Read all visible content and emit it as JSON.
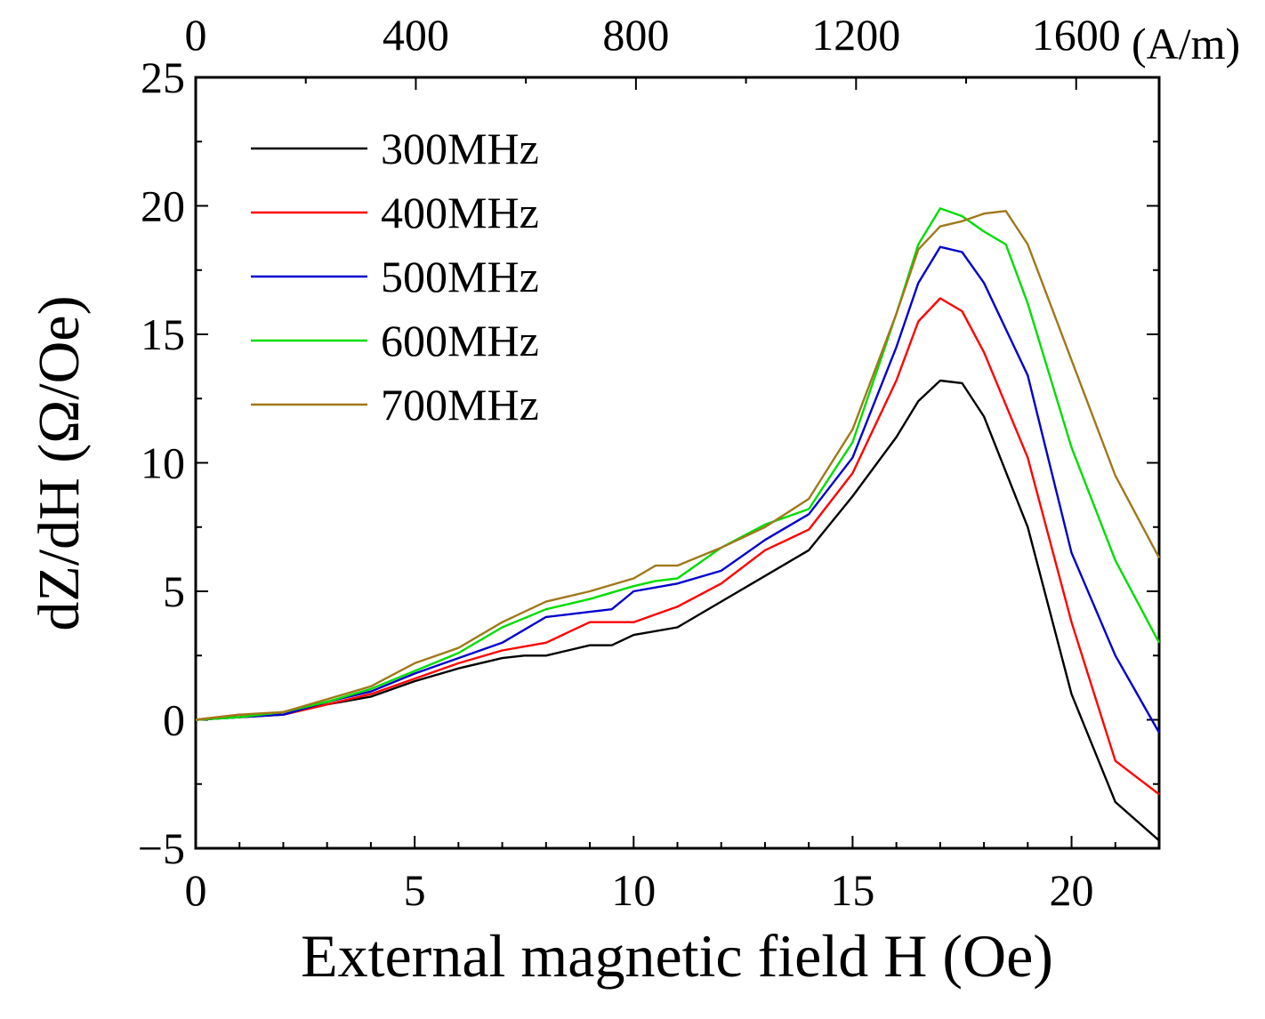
{
  "chart_data": {
    "type": "line",
    "title": "",
    "xlabel": "External magnetic field H (Oe)",
    "ylabel": "dZ/dH (Ω/Oe)",
    "xlim": [
      0,
      22
    ],
    "ylim": [
      -5,
      25
    ],
    "xticks": [
      0,
      5,
      10,
      15,
      20
    ],
    "yticks": [
      -5,
      0,
      5,
      10,
      15,
      20,
      25
    ],
    "xtick_labels": [
      "0",
      "5",
      "10",
      "15",
      "20"
    ],
    "ytick_labels": [
      "−5",
      "0",
      "5",
      "10",
      "15",
      "20",
      "25"
    ],
    "top_axis": {
      "unit_label": "(A/m)",
      "ticks": [
        0,
        400,
        800,
        1200,
        1600
      ],
      "tick_labels": [
        "0",
        "400",
        "800",
        "1200",
        "1600"
      ],
      "oe_per_unit": 0.012566
    },
    "legend_position": "top-left",
    "grid": false,
    "series": [
      {
        "name": "300MHz",
        "color": "#000000",
        "x": [
          0,
          1,
          2,
          3,
          4,
          5,
          6,
          7,
          7.5,
          8,
          9,
          9.5,
          10,
          11,
          12,
          13,
          14,
          15,
          16,
          16.5,
          17,
          17.5,
          18,
          19,
          20,
          21,
          22
        ],
        "y": [
          0,
          0.1,
          0.2,
          0.6,
          0.9,
          1.5,
          2.0,
          2.4,
          2.5,
          2.5,
          2.9,
          2.9,
          3.3,
          3.6,
          4.6,
          5.6,
          6.6,
          8.7,
          11.0,
          12.4,
          13.2,
          13.1,
          11.8,
          7.5,
          1.0,
          -3.2,
          -4.7
        ]
      },
      {
        "name": "400MHz",
        "color": "#ff0000",
        "x": [
          0,
          1,
          2,
          3,
          4,
          5,
          6,
          7,
          8,
          9,
          9.5,
          10,
          11,
          12,
          13,
          14,
          15,
          16,
          16.5,
          17,
          17.5,
          18,
          19,
          20,
          21,
          22
        ],
        "y": [
          0,
          0.2,
          0.2,
          0.6,
          1.0,
          1.6,
          2.2,
          2.7,
          3.0,
          3.8,
          3.8,
          3.8,
          4.4,
          5.3,
          6.6,
          7.4,
          9.6,
          13.2,
          15.5,
          16.4,
          15.9,
          14.3,
          10.2,
          3.8,
          -1.6,
          -2.9
        ]
      },
      {
        "name": "500MHz",
        "color": "#0000cc",
        "x": [
          0,
          1,
          2,
          3,
          4,
          5,
          6,
          7,
          8,
          9,
          9.5,
          10,
          11,
          12,
          13,
          14,
          15,
          16,
          16.5,
          17,
          17.5,
          18,
          19,
          20,
          21,
          22
        ],
        "y": [
          0,
          0.1,
          0.2,
          0.7,
          1.1,
          1.8,
          2.4,
          3.0,
          4.0,
          4.2,
          4.3,
          5.0,
          5.3,
          5.8,
          7.0,
          8.0,
          10.2,
          14.5,
          17.0,
          18.4,
          18.2,
          17.0,
          13.4,
          6.5,
          2.5,
          -0.5
        ]
      },
      {
        "name": "600MHz",
        "color": "#00dd00",
        "x": [
          0,
          1,
          2,
          3,
          4,
          5,
          6,
          7,
          8,
          9,
          10,
          10.5,
          11,
          12,
          13,
          14,
          15,
          16,
          16.5,
          17,
          17.5,
          18,
          18.5,
          19,
          20,
          21,
          22
        ],
        "y": [
          0,
          0.1,
          0.3,
          0.7,
          1.2,
          1.9,
          2.6,
          3.6,
          4.3,
          4.7,
          5.2,
          5.4,
          5.5,
          6.7,
          7.6,
          8.2,
          10.8,
          15.8,
          18.5,
          19.9,
          19.6,
          19.0,
          18.5,
          16.2,
          10.6,
          6.2,
          3.0
        ]
      },
      {
        "name": "700MHz",
        "color": "#a0781a",
        "x": [
          0,
          1,
          2,
          3,
          4,
          5,
          6,
          7,
          8,
          9,
          10,
          10.5,
          11,
          12,
          13,
          14,
          15,
          16,
          16.5,
          17,
          17.5,
          18,
          18.5,
          19,
          20,
          21,
          22
        ],
        "y": [
          0,
          0.2,
          0.3,
          0.8,
          1.3,
          2.2,
          2.8,
          3.8,
          4.6,
          5.0,
          5.5,
          6.0,
          6.0,
          6.7,
          7.5,
          8.6,
          11.3,
          15.8,
          18.3,
          19.2,
          19.4,
          19.7,
          19.8,
          18.5,
          14.0,
          9.5,
          6.3
        ]
      }
    ]
  }
}
